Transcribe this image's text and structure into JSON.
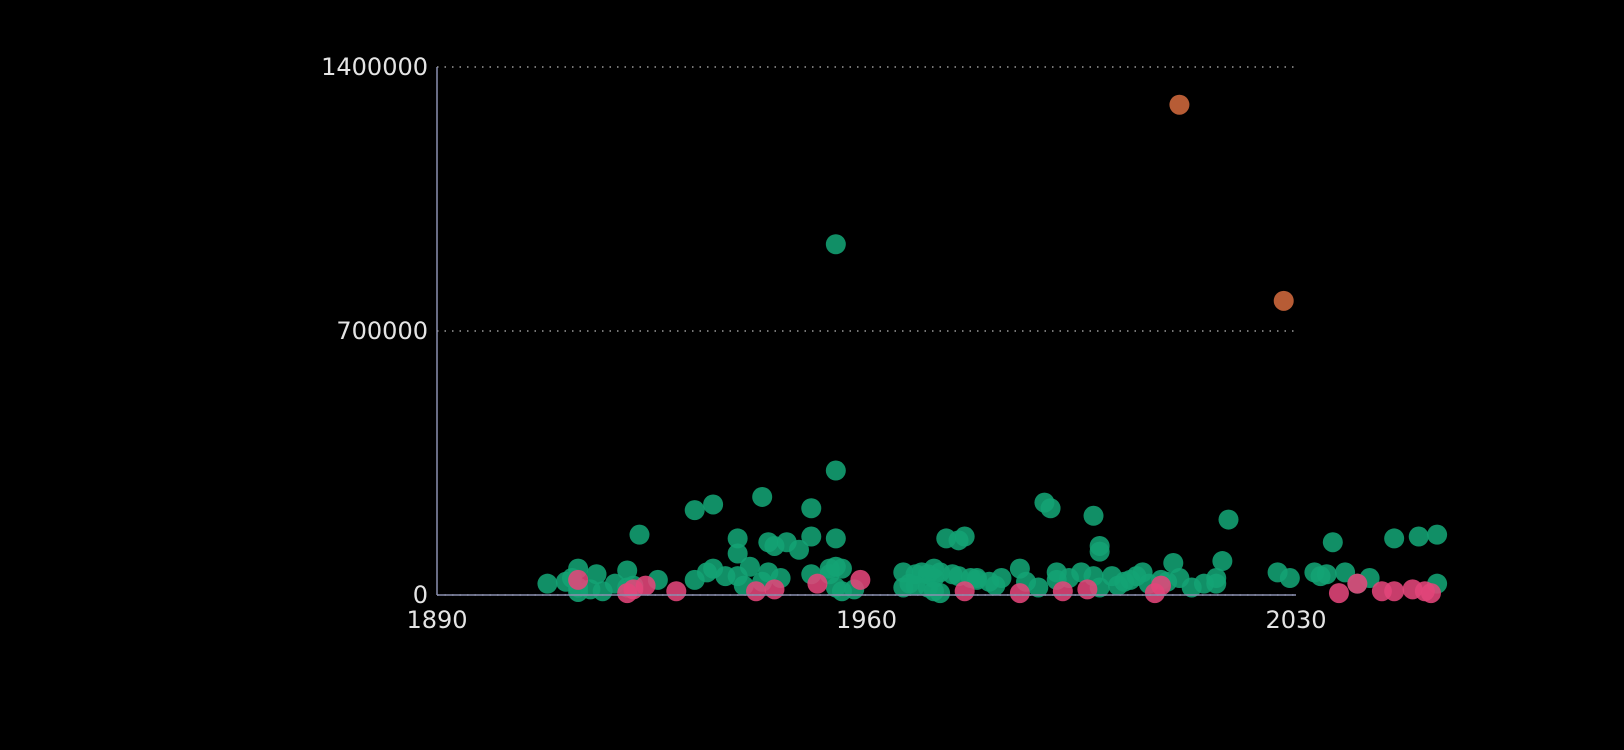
{
  "chart_data": {
    "type": "scatter",
    "title": "",
    "xlabel": "",
    "ylabel": "",
    "xlim": [
      1890,
      2030
    ],
    "ylim": [
      0,
      1400000
    ],
    "x_ticks": [
      {
        "value": 1890,
        "label": "1890"
      },
      {
        "value": 1960,
        "label": "1960"
      },
      {
        "value": 2030,
        "label": "2030"
      }
    ],
    "y_ticks": [
      {
        "value": 0,
        "label": "0"
      },
      {
        "value": 700000,
        "label": "700000"
      },
      {
        "value": 1400000,
        "label": "1400000"
      }
    ],
    "grid": "horizontal-dotted",
    "legend": "none",
    "colors": {
      "background": "#000000",
      "text": "#e4e4e4",
      "axis": "#8a8fb0",
      "grid": "#9a9a9a"
    },
    "series": [
      {
        "color": "#13a374",
        "points": [
          [
            1908,
            30000
          ],
          [
            1911,
            35000
          ],
          [
            1912,
            45000
          ],
          [
            1913,
            20000
          ],
          [
            1915,
            15000
          ],
          [
            1913,
            70000
          ],
          [
            1916,
            55000
          ],
          [
            1917,
            10000
          ],
          [
            1913,
            8000
          ],
          [
            1919,
            30000
          ],
          [
            1921,
            65000
          ],
          [
            1923,
            160000
          ],
          [
            1926,
            40000
          ],
          [
            1922,
            25000
          ],
          [
            1921,
            20000
          ],
          [
            1932,
            40000
          ],
          [
            1934,
            60000
          ],
          [
            1935,
            70000
          ],
          [
            1937,
            50000
          ],
          [
            1939,
            50000
          ],
          [
            1941,
            75000
          ],
          [
            1943,
            35000
          ],
          [
            1946,
            45000
          ],
          [
            1944,
            60000
          ],
          [
            1932,
            225000
          ],
          [
            1935,
            240000
          ],
          [
            1939,
            150000
          ],
          [
            1939,
            110000
          ],
          [
            1944,
            140000
          ],
          [
            1947,
            140000
          ],
          [
            1945,
            130000
          ],
          [
            1949,
            120000
          ],
          [
            1943,
            260000
          ],
          [
            1951,
            230000
          ],
          [
            1951,
            155000
          ],
          [
            1954,
            70000
          ],
          [
            1956,
            70000
          ],
          [
            1954,
            55000
          ],
          [
            1940,
            25000
          ],
          [
            1951,
            55000
          ],
          [
            1955,
            150000
          ],
          [
            1955,
            75000
          ],
          [
            1955,
            20000
          ],
          [
            1958,
            15000
          ],
          [
            1955,
            930000
          ],
          [
            1955,
            330000
          ],
          [
            1956,
            10000
          ],
          [
            1966,
            60000
          ],
          [
            1968,
            55000
          ],
          [
            1969,
            60000
          ],
          [
            1970,
            55000
          ],
          [
            1971,
            70000
          ],
          [
            1972,
            60000
          ],
          [
            1974,
            55000
          ],
          [
            1971,
            45000
          ],
          [
            1975,
            50000
          ],
          [
            1977,
            45000
          ],
          [
            1966,
            20000
          ],
          [
            1967,
            30000
          ],
          [
            1968,
            25000
          ],
          [
            1970,
            20000
          ],
          [
            1972,
            5000
          ],
          [
            1971,
            10000
          ],
          [
            1973,
            150000
          ],
          [
            1975,
            145000
          ],
          [
            1976,
            155000
          ],
          [
            1978,
            45000
          ],
          [
            1980,
            35000
          ],
          [
            1981,
            25000
          ],
          [
            1982,
            45000
          ],
          [
            1978,
            40000
          ],
          [
            1985,
            70000
          ],
          [
            1986,
            35000
          ],
          [
            1988,
            20000
          ],
          [
            1989,
            245000
          ],
          [
            1990,
            230000
          ],
          [
            1991,
            40000
          ],
          [
            1991,
            60000
          ],
          [
            1993,
            45000
          ],
          [
            1995,
            60000
          ],
          [
            1997,
            210000
          ],
          [
            1998,
            130000
          ],
          [
            1998,
            115000
          ],
          [
            1998,
            20000
          ],
          [
            1997,
            50000
          ],
          [
            2000,
            50000
          ],
          [
            2001,
            25000
          ],
          [
            2002,
            35000
          ],
          [
            2003,
            40000
          ],
          [
            2004,
            50000
          ],
          [
            2005,
            60000
          ],
          [
            2006,
            30000
          ],
          [
            2008,
            40000
          ],
          [
            2009,
            35000
          ],
          [
            2010,
            85000
          ],
          [
            2011,
            45000
          ],
          [
            2013,
            20000
          ],
          [
            2015,
            30000
          ],
          [
            2018,
            90000
          ],
          [
            2019,
            200000
          ],
          [
            2017,
            45000
          ],
          [
            2017,
            30000
          ],
          [
            2027,
            60000
          ],
          [
            2029,
            45000
          ],
          [
            2033,
            60000
          ],
          [
            2034,
            50000
          ],
          [
            2035,
            55000
          ],
          [
            2036,
            140000
          ],
          [
            2038,
            60000
          ],
          [
            2040,
            30000
          ],
          [
            2042,
            45000
          ],
          [
            2046,
            150000
          ],
          [
            2050,
            155000
          ],
          [
            2053,
            160000
          ],
          [
            2053,
            30000
          ]
        ]
      },
      {
        "color": "#e2467a",
        "points": [
          [
            1913,
            40000
          ],
          [
            1921,
            5000
          ],
          [
            1922,
            15000
          ],
          [
            1924,
            25000
          ],
          [
            1929,
            10000
          ],
          [
            1945,
            15000
          ],
          [
            1942,
            10000
          ],
          [
            1952,
            30000
          ],
          [
            1959,
            40000
          ],
          [
            1976,
            10000
          ],
          [
            1985,
            5000
          ],
          [
            1992,
            10000
          ],
          [
            1996,
            15000
          ],
          [
            2007,
            5000
          ],
          [
            2008,
            25000
          ],
          [
            2037,
            5000
          ],
          [
            2040,
            30000
          ],
          [
            2044,
            10000
          ],
          [
            2046,
            10000
          ],
          [
            2049,
            15000
          ],
          [
            2051,
            10000
          ],
          [
            2052,
            5000
          ]
        ]
      },
      {
        "color": "#d0693c",
        "points": [
          [
            2011,
            1300000
          ],
          [
            2028,
            780000
          ]
        ]
      }
    ]
  }
}
